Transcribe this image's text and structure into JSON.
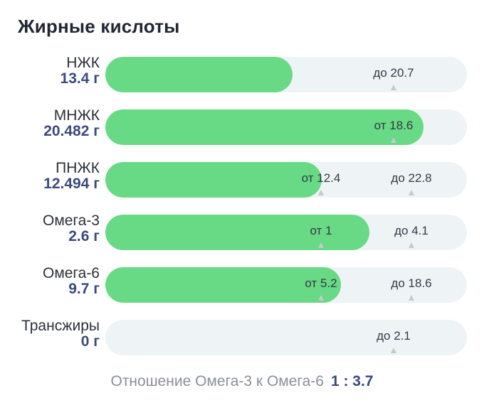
{
  "title": "Жирные кислоты",
  "colors": {
    "fill": "#68d985",
    "track": "#eef3f6",
    "value_text": "#3a4a7c",
    "marker": "#c3c9cf"
  },
  "nutrients": [
    {
      "name": "НЖК",
      "value": "13.4 г",
      "amount": 13.4,
      "marks": [
        {
          "text": "до 20.7",
          "value": 20.7
        }
      ]
    },
    {
      "name": "МНЖК",
      "value": "20.482 г",
      "amount": 20.482,
      "marks": [
        {
          "text": "от 18.6",
          "value": 18.6
        }
      ]
    },
    {
      "name": "ПНЖК",
      "value": "12.494 г",
      "amount": 12.494,
      "marks": [
        {
          "text": "от 12.4",
          "value": 12.4
        },
        {
          "text": "до 22.8",
          "value": 22.8
        }
      ]
    },
    {
      "name": "Омега-3",
      "value": "2.6 г",
      "amount": 2.6,
      "marks": [
        {
          "text": "от 1",
          "value": 1
        },
        {
          "text": "до 4.1",
          "value": 4.1
        }
      ]
    },
    {
      "name": "Омега-6",
      "value": "9.7 г",
      "amount": 9.7,
      "marks": [
        {
          "text": "от 5.2",
          "value": 5.2
        },
        {
          "text": "до 18.6",
          "value": 18.6
        }
      ]
    },
    {
      "name": "Трансжиры",
      "value": "0 г",
      "amount": 0,
      "marks": [
        {
          "text": "до 2.1",
          "value": 2.1
        }
      ]
    }
  ],
  "ratio": {
    "label": "Отношение Омега-3 к Омега-6",
    "value": "1 : 3.7"
  }
}
